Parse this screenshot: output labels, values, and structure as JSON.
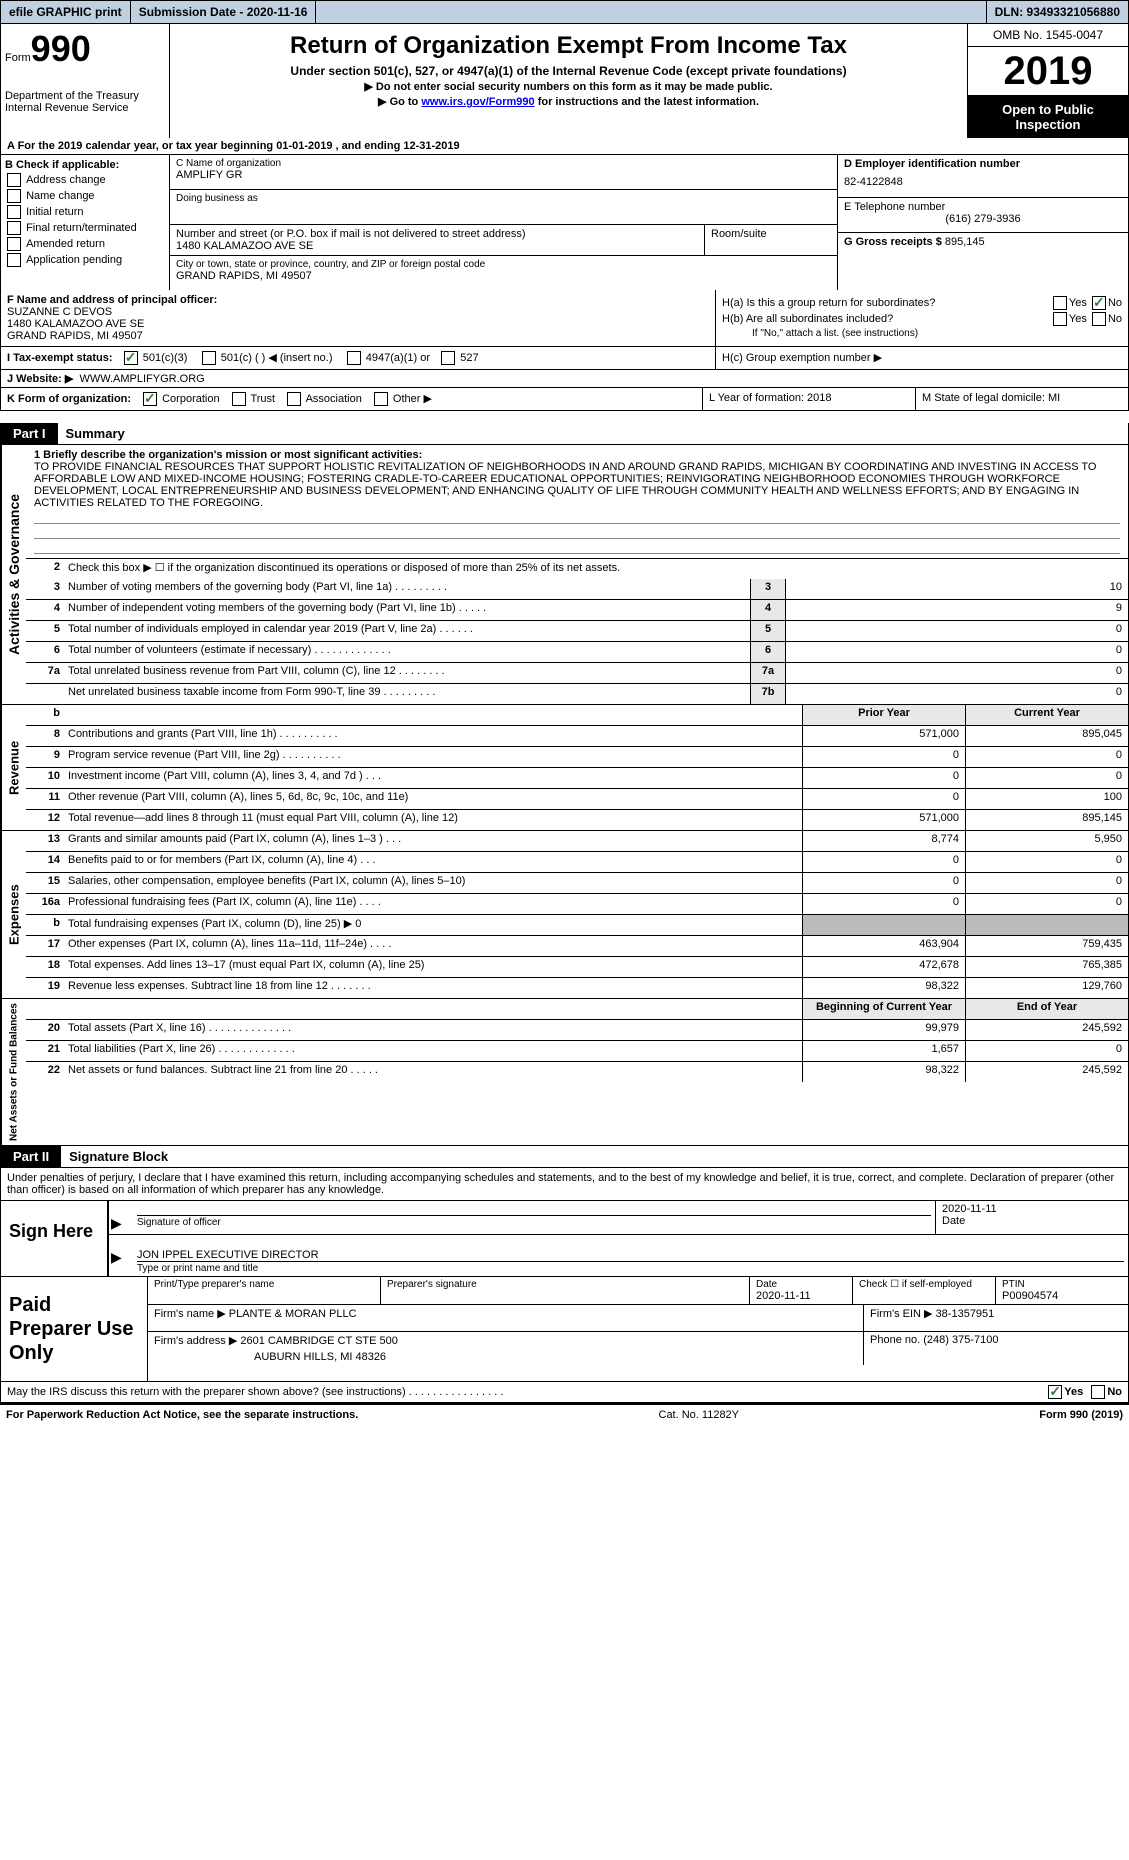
{
  "topbar": {
    "efile": "efile GRAPHIC print",
    "submission": "Submission Date - 2020-11-16",
    "dln": "DLN: 93493321056880"
  },
  "header": {
    "form_label": "Form",
    "form_num": "990",
    "dept": "Department of the Treasury\nInternal Revenue Service",
    "title": "Return of Organization Exempt From Income Tax",
    "subtitle": "Under section 501(c), 527, or 4947(a)(1) of the Internal Revenue Code (except private foundations)",
    "note1": "▶ Do not enter social security numbers on this form as it may be made public.",
    "note2_pre": "▶ Go to ",
    "note2_link": "www.irs.gov/Form990",
    "note2_post": " for instructions and the latest information.",
    "omb": "OMB No. 1545-0047",
    "year": "2019",
    "open": "Open to Public Inspection"
  },
  "rowA": "A For the 2019 calendar year, or tax year beginning 01-01-2019 , and ending 12-31-2019",
  "B": {
    "label": "B Check if applicable:",
    "items": [
      "Address change",
      "Name change",
      "Initial return",
      "Final return/terminated",
      "Amended return",
      "Application pending"
    ]
  },
  "C": {
    "name_lbl": "C Name of organization",
    "name": "AMPLIFY GR",
    "dba_lbl": "Doing business as",
    "street_lbl": "Number and street (or P.O. box if mail is not delivered to street address)",
    "street": "1480 KALAMAZOO AVE SE",
    "room_lbl": "Room/suite",
    "city_lbl": "City or town, state or province, country, and ZIP or foreign postal code",
    "city": "GRAND RAPIDS, MI  49507"
  },
  "D": {
    "lbl": "D Employer identification number",
    "val": "82-4122848"
  },
  "E": {
    "lbl": "E Telephone number",
    "val": "(616) 279-3936"
  },
  "G": {
    "lbl": "G Gross receipts $",
    "val": "895,145"
  },
  "F": {
    "lbl": "F Name and address of principal officer:",
    "name": "SUZANNE C DEVOS",
    "addr1": "1480 KALAMAZOO AVE SE",
    "addr2": "GRAND RAPIDS, MI  49507"
  },
  "H": {
    "a": "H(a) Is this a group return for subordinates?",
    "b": "H(b) Are all subordinates included?",
    "note": "If \"No,\" attach a list. (see instructions)",
    "c": "H(c) Group exemption number ▶",
    "yes": "Yes",
    "no": "No"
  },
  "I": {
    "lbl": "I   Tax-exempt status:",
    "opt1": "501(c)(3)",
    "opt2": "501(c) (   ) ◀ (insert no.)",
    "opt3": "4947(a)(1) or",
    "opt4": "527"
  },
  "J": {
    "lbl": "J Website: ▶",
    "val": "WWW.AMPLIFYGR.ORG"
  },
  "K": {
    "lbl": "K Form of organization:",
    "opts": [
      "Corporation",
      "Trust",
      "Association",
      "Other ▶"
    ],
    "L": "L Year of formation: 2018",
    "M": "M State of legal domicile: MI"
  },
  "part1": {
    "tab": "Part I",
    "title": "Summary"
  },
  "mission": {
    "lbl": "1  Briefly describe the organization's mission or most significant activities:",
    "text": "TO PROVIDE FINANCIAL RESOURCES THAT SUPPORT HOLISTIC REVITALIZATION OF NEIGHBORHOODS IN AND AROUND GRAND RAPIDS, MICHIGAN BY COORDINATING AND INVESTING IN ACCESS TO AFFORDABLE LOW AND MIXED-INCOME HOUSING; FOSTERING CRADLE-TO-CAREER EDUCATIONAL OPPORTUNITIES; REINVIGORATING NEIGHBORHOOD ECONOMIES THROUGH WORKFORCE DEVELOPMENT, LOCAL ENTREPRENEURSHIP AND BUSINESS DEVELOPMENT; AND ENHANCING QUALITY OF LIFE THROUGH COMMUNITY HEALTH AND WELLNESS EFFORTS; AND BY ENGAGING IN ACTIVITIES RELATED TO THE FOREGOING."
  },
  "gov_lines": [
    {
      "n": "2",
      "t": "Check this box ▶ ☐ if the organization discontinued its operations or disposed of more than 25% of its net assets."
    },
    {
      "n": "3",
      "t": "Number of voting members of the governing body (Part VI, line 1a)   .   .   .   .   .   .   .   .   .",
      "bn": "3",
      "v": "10"
    },
    {
      "n": "4",
      "t": "Number of independent voting members of the governing body (Part VI, line 1b)   .   .   .   .   .",
      "bn": "4",
      "v": "9"
    },
    {
      "n": "5",
      "t": "Total number of individuals employed in calendar year 2019 (Part V, line 2a)   .   .   .   .   .   .",
      "bn": "5",
      "v": "0"
    },
    {
      "n": "6",
      "t": "Total number of volunteers (estimate if necessary)   .   .   .   .   .   .   .   .   .   .   .   .   .",
      "bn": "6",
      "v": "0"
    },
    {
      "n": "7a",
      "t": "Total unrelated business revenue from Part VIII, column (C), line 12   .   .   .   .   .   .   .   .",
      "bn": "7a",
      "v": "0"
    },
    {
      "n": "",
      "t": "Net unrelated business taxable income from Form 990-T, line 39   .   .   .   .   .   .   .   .   .",
      "bn": "7b",
      "v": "0"
    }
  ],
  "rev_header": {
    "prior": "Prior Year",
    "curr": "Current Year"
  },
  "rev_lines": [
    {
      "n": "8",
      "t": "Contributions and grants (Part VIII, line 1h)   .   .   .   .   .   .   .   .   .   .",
      "p": "571,000",
      "c": "895,045"
    },
    {
      "n": "9",
      "t": "Program service revenue (Part VIII, line 2g)   .   .   .   .   .   .   .   .   .   .",
      "p": "0",
      "c": "0"
    },
    {
      "n": "10",
      "t": "Investment income (Part VIII, column (A), lines 3, 4, and 7d )   .   .   .",
      "p": "0",
      "c": "0"
    },
    {
      "n": "11",
      "t": "Other revenue (Part VIII, column (A), lines 5, 6d, 8c, 9c, 10c, and 11e)",
      "p": "0",
      "c": "100"
    },
    {
      "n": "12",
      "t": "Total revenue—add lines 8 through 11 (must equal Part VIII, column (A), line 12)",
      "p": "571,000",
      "c": "895,145"
    }
  ],
  "exp_lines": [
    {
      "n": "13",
      "t": "Grants and similar amounts paid (Part IX, column (A), lines 1–3 )   .   .   .",
      "p": "8,774",
      "c": "5,950"
    },
    {
      "n": "14",
      "t": "Benefits paid to or for members (Part IX, column (A), line 4)   .   .   .",
      "p": "0",
      "c": "0"
    },
    {
      "n": "15",
      "t": "Salaries, other compensation, employee benefits (Part IX, column (A), lines 5–10)",
      "p": "0",
      "c": "0"
    },
    {
      "n": "16a",
      "t": "Professional fundraising fees (Part IX, column (A), line 11e)   .   .   .   .",
      "p": "0",
      "c": "0"
    },
    {
      "n": "b",
      "t": "Total fundraising expenses (Part IX, column (D), line 25) ▶ 0",
      "shade": true
    },
    {
      "n": "17",
      "t": "Other expenses (Part IX, column (A), lines 11a–11d, 11f–24e)   .   .   .   .",
      "p": "463,904",
      "c": "759,435"
    },
    {
      "n": "18",
      "t": "Total expenses. Add lines 13–17 (must equal Part IX, column (A), line 25)",
      "p": "472,678",
      "c": "765,385"
    },
    {
      "n": "19",
      "t": "Revenue less expenses. Subtract line 18 from line 12   .   .   .   .   .   .   .",
      "p": "98,322",
      "c": "129,760"
    }
  ],
  "na_header": {
    "prior": "Beginning of Current Year",
    "curr": "End of Year"
  },
  "na_lines": [
    {
      "n": "20",
      "t": "Total assets (Part X, line 16)   .   .   .   .   .   .   .   .   .   .   .   .   .   .",
      "p": "99,979",
      "c": "245,592"
    },
    {
      "n": "21",
      "t": "Total liabilities (Part X, line 26)   .   .   .   .   .   .   .   .   .   .   .   .   .",
      "p": "1,657",
      "c": "0"
    },
    {
      "n": "22",
      "t": "Net assets or fund balances. Subtract line 21 from line 20   .   .   .   .   .",
      "p": "98,322",
      "c": "245,592"
    }
  ],
  "part2": {
    "tab": "Part II",
    "title": "Signature Block"
  },
  "sig_decl": "Under penalties of perjury, I declare that I have examined this return, including accompanying schedules and statements, and to the best of my knowledge and belief, it is true, correct, and complete. Declaration of preparer (other than officer) is based on all information of which preparer has any knowledge.",
  "sign": {
    "label": "Sign Here",
    "sig_lbl": "Signature of officer",
    "date": "2020-11-11",
    "date_lbl": "Date",
    "name": "JON IPPEL  EXECUTIVE DIRECTOR",
    "name_lbl": "Type or print name and title"
  },
  "prep": {
    "label": "Paid Preparer Use Only",
    "h": [
      "Print/Type preparer's name",
      "Preparer's signature",
      "Date",
      "",
      "PTIN"
    ],
    "date": "2020-11-11",
    "check_lbl": "Check ☐ if self-employed",
    "ptin": "P00904574",
    "firm_lbl": "Firm's name    ▶",
    "firm": "PLANTE & MORAN PLLC",
    "ein_lbl": "Firm's EIN ▶",
    "ein": "38-1357951",
    "addr_lbl": "Firm's address ▶",
    "addr1": "2601 CAMBRIDGE CT STE 500",
    "addr2": "AUBURN HILLS, MI  48326",
    "phone_lbl": "Phone no.",
    "phone": "(248) 375-7100"
  },
  "may": {
    "q": "May the IRS discuss this return with the preparer shown above? (see instructions)   .   .   .   .   .   .   .   .   .   .   .   .   .   .   .   .",
    "yes": "Yes",
    "no": "No"
  },
  "footer": {
    "left": "For Paperwork Reduction Act Notice, see the separate instructions.",
    "mid": "Cat. No. 11282Y",
    "right": "Form 990 (2019)"
  },
  "vlabels": {
    "gov": "Activities & Governance",
    "rev": "Revenue",
    "exp": "Expenses",
    "na": "Net Assets or Fund Balances"
  }
}
